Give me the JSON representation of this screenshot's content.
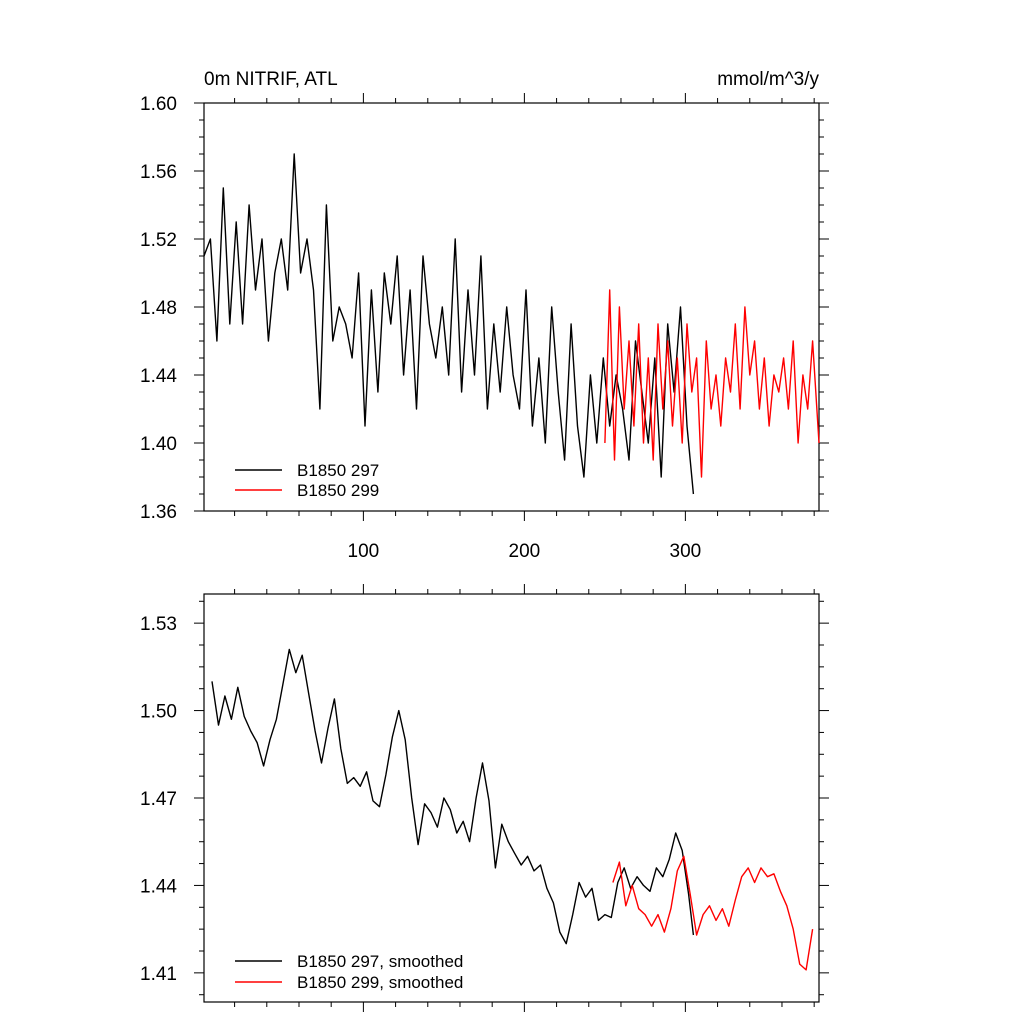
{
  "chart_data": [
    {
      "type": "line",
      "title": "0m NITRIF, ATL",
      "units": "mmol/m^3/y",
      "xlim": [
        1,
        383
      ],
      "ylim": [
        1.36,
        1.6
      ],
      "xticks": [
        100,
        200,
        300
      ],
      "xtick_labels": [
        "100",
        "200",
        "300"
      ],
      "yticks": [
        1.36,
        1.4,
        1.44,
        1.48,
        1.52,
        1.56,
        1.6
      ],
      "ytick_labels": [
        "1.36",
        "1.40",
        "1.44",
        "1.48",
        "1.52",
        "1.56",
        "1.60"
      ],
      "legend_position": "bottom-left",
      "series": [
        {
          "name": "B1850 297",
          "color": "#000000",
          "x": [
            1,
            5,
            9,
            13,
            17,
            21,
            25,
            29,
            33,
            37,
            41,
            45,
            49,
            53,
            57,
            61,
            65,
            69,
            73,
            77,
            81,
            85,
            89,
            93,
            97,
            101,
            105,
            109,
            113,
            117,
            121,
            125,
            129,
            133,
            137,
            141,
            145,
            149,
            153,
            157,
            161,
            165,
            169,
            173,
            177,
            181,
            185,
            189,
            193,
            197,
            201,
            205,
            209,
            213,
            217,
            221,
            225,
            229,
            233,
            237,
            241,
            245,
            249,
            253,
            257,
            261,
            265,
            269,
            273,
            277,
            281,
            285,
            289,
            293,
            297,
            301,
            305
          ],
          "values": [
            1.51,
            1.52,
            1.46,
            1.55,
            1.47,
            1.53,
            1.47,
            1.54,
            1.49,
            1.52,
            1.46,
            1.5,
            1.52,
            1.49,
            1.57,
            1.5,
            1.52,
            1.49,
            1.42,
            1.54,
            1.46,
            1.48,
            1.47,
            1.45,
            1.5,
            1.41,
            1.49,
            1.43,
            1.5,
            1.47,
            1.51,
            1.44,
            1.49,
            1.42,
            1.51,
            1.47,
            1.45,
            1.48,
            1.44,
            1.52,
            1.43,
            1.49,
            1.44,
            1.51,
            1.42,
            1.47,
            1.43,
            1.48,
            1.44,
            1.42,
            1.49,
            1.41,
            1.45,
            1.4,
            1.48,
            1.43,
            1.39,
            1.47,
            1.41,
            1.38,
            1.44,
            1.4,
            1.45,
            1.41,
            1.44,
            1.42,
            1.39,
            1.46,
            1.43,
            1.4,
            1.45,
            1.38,
            1.47,
            1.43,
            1.48,
            1.41,
            1.37
          ]
        },
        {
          "name": "B1850 299",
          "color": "#ff0000",
          "x": [
            250,
            253,
            256,
            259,
            262,
            265,
            268,
            271,
            274,
            277,
            280,
            283,
            286,
            289,
            292,
            295,
            298,
            301,
            304,
            307,
            310,
            313,
            316,
            319,
            322,
            325,
            328,
            331,
            334,
            337,
            340,
            343,
            346,
            349,
            352,
            355,
            358,
            361,
            364,
            367,
            370,
            373,
            376,
            379,
            383
          ],
          "values": [
            1.4,
            1.49,
            1.39,
            1.48,
            1.42,
            1.46,
            1.41,
            1.47,
            1.4,
            1.45,
            1.39,
            1.47,
            1.42,
            1.46,
            1.41,
            1.45,
            1.4,
            1.47,
            1.43,
            1.45,
            1.38,
            1.46,
            1.42,
            1.44,
            1.41,
            1.45,
            1.43,
            1.47,
            1.42,
            1.48,
            1.44,
            1.46,
            1.42,
            1.45,
            1.41,
            1.44,
            1.43,
            1.45,
            1.42,
            1.46,
            1.4,
            1.44,
            1.42,
            1.46,
            1.4
          ]
        }
      ]
    },
    {
      "type": "line",
      "title": "",
      "xlim": [
        1,
        383
      ],
      "ylim": [
        1.4,
        1.54
      ],
      "xticks": [
        100,
        200,
        300
      ],
      "yticks": [
        1.41,
        1.44,
        1.47,
        1.5,
        1.53
      ],
      "ytick_labels": [
        "1.41",
        "1.44",
        "1.47",
        "1.50",
        "1.53"
      ],
      "legend_position": "bottom-left",
      "series": [
        {
          "name": "B1850 297, smoothed",
          "color": "#000000",
          "x": [
            6,
            10,
            14,
            18,
            22,
            26,
            30,
            34,
            38,
            42,
            46,
            50,
            54,
            58,
            62,
            66,
            70,
            74,
            78,
            82,
            86,
            90,
            94,
            98,
            102,
            106,
            110,
            114,
            118,
            122,
            126,
            130,
            134,
            138,
            142,
            146,
            150,
            154,
            158,
            162,
            166,
            170,
            174,
            178,
            182,
            186,
            190,
            194,
            198,
            202,
            206,
            210,
            214,
            218,
            222,
            226,
            230,
            234,
            238,
            242,
            246,
            250,
            254,
            258,
            262,
            266,
            270,
            274,
            278,
            282,
            286,
            290,
            294,
            298,
            302,
            305
          ],
          "values": [
            1.51,
            1.495,
            1.505,
            1.497,
            1.508,
            1.498,
            1.493,
            1.489,
            1.481,
            1.49,
            1.497,
            1.509,
            1.521,
            1.513,
            1.519,
            1.506,
            1.493,
            1.482,
            1.494,
            1.504,
            1.487,
            1.475,
            1.477,
            1.474,
            1.479,
            1.469,
            1.467,
            1.478,
            1.491,
            1.5,
            1.49,
            1.47,
            1.454,
            1.468,
            1.465,
            1.46,
            1.47,
            1.466,
            1.458,
            1.462,
            1.455,
            1.47,
            1.482,
            1.469,
            1.446,
            1.461,
            1.455,
            1.451,
            1.447,
            1.45,
            1.445,
            1.447,
            1.439,
            1.434,
            1.424,
            1.42,
            1.43,
            1.441,
            1.436,
            1.439,
            1.428,
            1.43,
            1.429,
            1.441,
            1.446,
            1.439,
            1.443,
            1.44,
            1.438,
            1.446,
            1.443,
            1.449,
            1.458,
            1.452,
            1.437,
            1.423
          ]
        },
        {
          "name": "B1850 299, smoothed",
          "color": "#ff0000",
          "x": [
            255,
            259,
            263,
            267,
            271,
            275,
            279,
            283,
            287,
            291,
            295,
            299,
            303,
            307,
            311,
            315,
            319,
            323,
            327,
            331,
            335,
            339,
            343,
            347,
            351,
            355,
            359,
            363,
            367,
            371,
            375,
            379
          ],
          "values": [
            1.441,
            1.448,
            1.433,
            1.44,
            1.432,
            1.43,
            1.426,
            1.43,
            1.424,
            1.432,
            1.445,
            1.45,
            1.437,
            1.423,
            1.43,
            1.433,
            1.428,
            1.432,
            1.426,
            1.435,
            1.443,
            1.446,
            1.441,
            1.446,
            1.443,
            1.444,
            1.438,
            1.433,
            1.425,
            1.413,
            1.411,
            1.425
          ]
        }
      ]
    }
  ]
}
